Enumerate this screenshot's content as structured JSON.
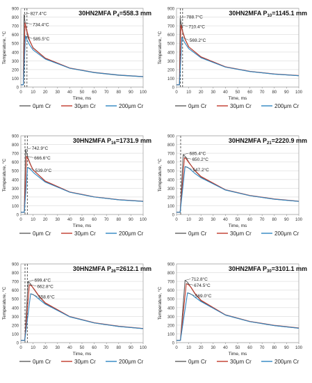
{
  "chart_data": [
    {
      "type": "line",
      "title": "30HN2MFA P",
      "title_sub": "4",
      "title_tail": "=558.3 mm",
      "xlabel": "Time, ms",
      "ylabel": "Temperature, °C",
      "xlim": [
        0,
        100
      ],
      "ylim": [
        0,
        900
      ],
      "xticks": [
        0,
        10,
        20,
        30,
        40,
        50,
        60,
        70,
        80,
        90,
        100
      ],
      "yticks": [
        0,
        100,
        200,
        300,
        400,
        500,
        600,
        700,
        800,
        900
      ],
      "legend_position": "bottom",
      "vlines": [
        3.2,
        5.0
      ],
      "peaks": [
        {
          "x": 2.6,
          "y": 827.4,
          "label": "827.4°C"
        },
        {
          "x": 3.4,
          "y": 734.4,
          "label": "734.4°C"
        },
        {
          "x": 3.8,
          "y": 585.5,
          "label": "585.5°C"
        }
      ],
      "series": [
        {
          "name": "0μm Cr",
          "color": "#5f5f5f",
          "x": [
            0,
            2.0,
            2.6,
            4,
            6,
            10,
            20,
            40,
            60,
            80,
            100
          ],
          "y": [
            25,
            25,
            827.4,
            690,
            560,
            450,
            330,
            215,
            165,
            135,
            118
          ]
        },
        {
          "name": "30μm Cr",
          "color": "#c0392b",
          "x": [
            0,
            2.0,
            3.4,
            5,
            7,
            10,
            20,
            40,
            60,
            80,
            100
          ],
          "y": [
            25,
            25,
            734.4,
            640,
            540,
            445,
            330,
            218,
            168,
            138,
            120
          ]
        },
        {
          "name": "200μm Cr",
          "color": "#2e86c1",
          "x": [
            0,
            2.0,
            3.8,
            5,
            7,
            10,
            20,
            40,
            60,
            80,
            100
          ],
          "y": [
            25,
            25,
            585.5,
            540,
            485,
            425,
            320,
            215,
            166,
            137,
            119
          ]
        }
      ]
    },
    {
      "type": "line",
      "title": "30HN2MFA P",
      "title_sub": "10",
      "title_tail": "=1145.1 mm",
      "xlabel": "Time, ms",
      "ylabel": "Temperature, °C",
      "xlim": [
        0,
        100
      ],
      "ylim": [
        0,
        900
      ],
      "xticks": [
        0,
        10,
        20,
        30,
        40,
        50,
        60,
        70,
        80,
        90,
        100
      ],
      "yticks": [
        0,
        100,
        200,
        300,
        400,
        500,
        600,
        700,
        800,
        900
      ],
      "legend_position": "bottom",
      "vlines": [
        3.2,
        5.0
      ],
      "peaks": [
        {
          "x": 3.0,
          "y": 788.7,
          "label": "788.7°C"
        },
        {
          "x": 3.6,
          "y": 710.4,
          "label": "710.4°C"
        },
        {
          "x": 4.4,
          "y": 569.2,
          "label": "569.2°C"
        }
      ],
      "series": [
        {
          "name": "0μm Cr",
          "color": "#5f5f5f",
          "x": [
            0,
            2.4,
            3.0,
            5,
            7,
            10,
            20,
            40,
            60,
            80,
            100
          ],
          "y": [
            25,
            25,
            788.7,
            640,
            550,
            460,
            345,
            230,
            178,
            148,
            130
          ]
        },
        {
          "name": "30μm Cr",
          "color": "#c0392b",
          "x": [
            0,
            2.4,
            3.6,
            5,
            7,
            10,
            20,
            40,
            60,
            80,
            100
          ],
          "y": [
            25,
            25,
            710.4,
            630,
            545,
            460,
            345,
            232,
            180,
            150,
            132
          ]
        },
        {
          "name": "200μm Cr",
          "color": "#2e86c1",
          "x": [
            0,
            2.4,
            4.4,
            6,
            8,
            10,
            20,
            40,
            60,
            80,
            100
          ],
          "y": [
            25,
            25,
            569.2,
            525,
            480,
            440,
            335,
            228,
            178,
            148,
            130
          ]
        }
      ]
    },
    {
      "type": "line",
      "title": "30HN2MFA P",
      "title_sub": "16",
      "title_tail": "=1731.9 mm",
      "xlabel": "Time, ms",
      "ylabel": "Temperature, °C",
      "xlim": [
        0,
        100
      ],
      "ylim": [
        0,
        900
      ],
      "xticks": [
        0,
        10,
        20,
        30,
        40,
        50,
        60,
        70,
        80,
        90,
        100
      ],
      "yticks": [
        0,
        100,
        200,
        300,
        400,
        500,
        600,
        700,
        800,
        900
      ],
      "legend_position": "bottom",
      "vlines": [
        3.4,
        5.3
      ],
      "peaks": [
        {
          "x": 3.8,
          "y": 742.9,
          "label": "742.9°C"
        },
        {
          "x": 4.6,
          "y": 666.6,
          "label": "666.6°C"
        },
        {
          "x": 5.5,
          "y": 539.0,
          "label": "539.0°C"
        }
      ],
      "series": [
        {
          "name": "0μm Cr",
          "color": "#5f5f5f",
          "x": [
            0,
            2.8,
            3.8,
            6,
            8,
            10,
            20,
            40,
            60,
            80,
            100
          ],
          "y": [
            25,
            25,
            742.9,
            640,
            570,
            510,
            380,
            255,
            200,
            168,
            150
          ]
        },
        {
          "name": "30μm Cr",
          "color": "#c0392b",
          "x": [
            0,
            2.8,
            4.6,
            6,
            8,
            10,
            20,
            40,
            60,
            80,
            100
          ],
          "y": [
            25,
            25,
            666.6,
            630,
            565,
            510,
            382,
            258,
            202,
            170,
            152
          ]
        },
        {
          "name": "200μm Cr",
          "color": "#2e86c1",
          "x": [
            0,
            2.8,
            5.5,
            7,
            9,
            11,
            20,
            40,
            60,
            80,
            100
          ],
          "y": [
            25,
            25,
            539.0,
            525,
            500,
            470,
            370,
            255,
            200,
            168,
            150
          ]
        }
      ]
    },
    {
      "type": "line",
      "title": "30HN2MFA P",
      "title_sub": "21",
      "title_tail": "=2220.9 mm",
      "xlabel": "Time, ms",
      "ylabel": "Temperature, °C",
      "xlim": [
        0,
        100
      ],
      "ylim": [
        0,
        900
      ],
      "xticks": [
        0,
        10,
        20,
        30,
        40,
        50,
        60,
        70,
        80,
        90,
        100
      ],
      "yticks": [
        0,
        100,
        200,
        300,
        400,
        500,
        600,
        700,
        800,
        900
      ],
      "legend_position": "bottom",
      "vlines": [
        3.4
      ],
      "peaks": [
        {
          "x": 5.5,
          "y": 685.4,
          "label": "685.4°C"
        },
        {
          "x": 6.5,
          "y": 650.2,
          "label": "650.2°C"
        },
        {
          "x": 7.0,
          "y": 547.2,
          "label": "547.2°C"
        }
      ],
      "series": [
        {
          "name": "0μm Cr",
          "color": "#5f5f5f",
          "x": [
            0,
            3.0,
            5.5,
            8,
            10,
            15,
            20,
            40,
            60,
            80,
            100
          ],
          "y": [
            25,
            25,
            685.4,
            650,
            600,
            500,
            430,
            280,
            215,
            175,
            150
          ]
        },
        {
          "name": "30μm Cr",
          "color": "#c0392b",
          "x": [
            0,
            3.0,
            6.5,
            8,
            10,
            15,
            20,
            40,
            60,
            80,
            100
          ],
          "y": [
            25,
            25,
            650.2,
            635,
            595,
            505,
            435,
            283,
            218,
            178,
            152
          ]
        },
        {
          "name": "200μm Cr",
          "color": "#2e86c1",
          "x": [
            0,
            3.0,
            7.0,
            9,
            11,
            15,
            20,
            40,
            60,
            80,
            100
          ],
          "y": [
            25,
            25,
            547.2,
            540,
            520,
            470,
            420,
            280,
            215,
            175,
            150
          ]
        }
      ]
    },
    {
      "type": "line",
      "title": "30HN2MFA P",
      "title_sub": "26",
      "title_tail": "=2612.1 mm",
      "xlabel": "Time, ms",
      "ylabel": "Temperature, °C",
      "xlim": [
        0,
        100
      ],
      "ylim": [
        0,
        900
      ],
      "xticks": [
        0,
        10,
        20,
        30,
        40,
        50,
        60,
        70,
        80,
        90,
        100
      ],
      "yticks": [
        0,
        100,
        200,
        300,
        400,
        500,
        600,
        700,
        800,
        900
      ],
      "legend_position": "bottom",
      "vlines": [
        3.4,
        5.3
      ],
      "peaks": [
        {
          "x": 6.0,
          "y": 699.4,
          "label": "699.4°C"
        },
        {
          "x": 7.0,
          "y": 662.8,
          "label": "662.8°C"
        },
        {
          "x": 8.0,
          "y": 558.6,
          "label": "558.6°C"
        }
      ],
      "series": [
        {
          "name": "0μm Cr",
          "color": "#5f5f5f",
          "x": [
            0,
            3.2,
            6.0,
            8,
            10,
            15,
            20,
            40,
            60,
            80,
            100
          ],
          "y": [
            25,
            25,
            699.4,
            670,
            625,
            525,
            450,
            295,
            225,
            185,
            160
          ]
        },
        {
          "name": "30μm Cr",
          "color": "#c0392b",
          "x": [
            0,
            3.2,
            7.0,
            9,
            11,
            15,
            20,
            40,
            60,
            80,
            100
          ],
          "y": [
            25,
            25,
            662.8,
            645,
            610,
            530,
            455,
            298,
            228,
            188,
            162
          ]
        },
        {
          "name": "200μm Cr",
          "color": "#2e86c1",
          "x": [
            0,
            3.2,
            8.0,
            10,
            12,
            15,
            20,
            40,
            60,
            80,
            100
          ],
          "y": [
            25,
            25,
            558.6,
            550,
            530,
            495,
            440,
            295,
            225,
            185,
            160
          ]
        }
      ]
    },
    {
      "type": "line",
      "title": "30HN2MFA P",
      "title_sub": "30",
      "title_tail": "=3101.1 mm",
      "xlabel": "Time, ms",
      "ylabel": "Temperature, °C",
      "xlim": [
        0,
        100
      ],
      "ylim": [
        0,
        900
      ],
      "xticks": [
        0,
        10,
        20,
        30,
        40,
        50,
        60,
        70,
        80,
        90,
        100
      ],
      "yticks": [
        0,
        100,
        200,
        300,
        400,
        500,
        600,
        700,
        800,
        900
      ],
      "legend_position": "bottom",
      "vlines": [],
      "peaks": [
        {
          "x": 7.0,
          "y": 712.8,
          "label": "712.8°C"
        },
        {
          "x": 8.0,
          "y": 674.5,
          "label": "674.5°C"
        },
        {
          "x": 9.0,
          "y": 569.0,
          "label": "569.0°C"
        }
      ],
      "series": [
        {
          "name": "0μm Cr",
          "color": "#5f5f5f",
          "x": [
            0,
            3.2,
            7.0,
            9,
            11,
            15,
            20,
            40,
            60,
            80,
            100
          ],
          "y": [
            25,
            25,
            712.8,
            690,
            650,
            560,
            480,
            315,
            240,
            195,
            165
          ]
        },
        {
          "name": "30μm Cr",
          "color": "#c0392b",
          "x": [
            0,
            3.2,
            8.0,
            10,
            12,
            15,
            20,
            40,
            60,
            80,
            100
          ],
          "y": [
            25,
            25,
            674.5,
            660,
            630,
            565,
            485,
            318,
            243,
            198,
            168
          ]
        },
        {
          "name": "200μm Cr",
          "color": "#2e86c1",
          "x": [
            0,
            3.2,
            9.0,
            11,
            13,
            15,
            20,
            40,
            60,
            80,
            100
          ],
          "y": [
            25,
            25,
            569.0,
            560,
            545,
            520,
            470,
            315,
            240,
            195,
            165
          ]
        }
      ]
    }
  ]
}
